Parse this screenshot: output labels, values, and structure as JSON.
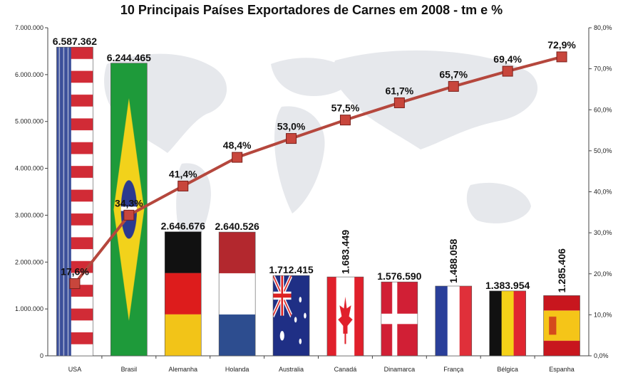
{
  "chart_data": {
    "type": "bar",
    "title": "10 Principais Países Exportadores de Carnes em 2008 - tm e %",
    "categories": [
      "USA",
      "Brasil",
      "Alemanha",
      "Holanda",
      "Australia",
      "Canadá",
      "Dinamarca",
      "França",
      "Bélgica",
      "Espanha"
    ],
    "series": [
      {
        "type": "bar",
        "axis": "left",
        "values": [
          6587362,
          6244465,
          2646676,
          2640526,
          1712415,
          1683449,
          1576590,
          1488058,
          1383954,
          1285406
        ],
        "labels": [
          "6.587.362",
          "6.244.465",
          "2.646.676",
          "2.640.526",
          "1.712.415",
          "1.683.449",
          "1.576.590",
          "1.488.058",
          "1.383.954",
          "1.285.406"
        ]
      },
      {
        "type": "line",
        "axis": "right",
        "values": [
          17.6,
          34.3,
          41.4,
          48.4,
          53.0,
          57.5,
          61.7,
          65.7,
          69.4,
          72.9
        ],
        "labels": [
          "17,6%",
          "34,3%",
          "41,4%",
          "48,4%",
          "53,0%",
          "57,5%",
          "61,7%",
          "65,7%",
          "69,4%",
          "72,9%"
        ]
      }
    ],
    "y_left": {
      "min": 0,
      "max": 7000000,
      "ticks": [
        0,
        1000000,
        2000000,
        3000000,
        4000000,
        5000000,
        6000000,
        7000000
      ],
      "tick_labels": [
        "0",
        "1.000.000",
        "2.000.000",
        "3.000.000",
        "4.000.000",
        "5.000.000",
        "6.000.000",
        "7.000.000"
      ]
    },
    "y_right": {
      "min": 0,
      "max": 80,
      "ticks": [
        0,
        10,
        20,
        30,
        40,
        50,
        60,
        70,
        80
      ],
      "tick_labels": [
        "0,0%",
        "10,0%",
        "20,0%",
        "30,0%",
        "40,0%",
        "50,0%",
        "60,0%",
        "70,0%",
        "80,0%"
      ]
    },
    "bar_fills": [
      "flag-usa",
      "flag-brasil",
      "flag-alemanha",
      "flag-holanda",
      "flag-australia",
      "flag-canada",
      "flag-dinamarca",
      "flag-franca",
      "flag-belgica",
      "flag-espanha"
    ],
    "colors": {
      "line": "#b5473d",
      "marker": "#c8463c",
      "marker_stroke": "#7a1f1a",
      "axis": "#444444",
      "background_map": "#e8eaee"
    },
    "grid": false,
    "legend": "none"
  }
}
